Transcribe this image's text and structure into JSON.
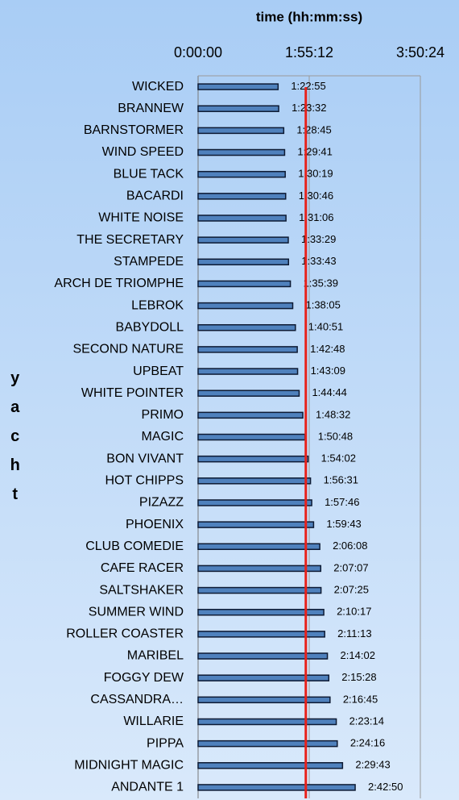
{
  "chart_data": {
    "type": "hbar",
    "x_label": "time (hh:mm:ss)",
    "y_label": "yacht",
    "categories": [
      "WICKED",
      "BRANNEW",
      "BARNSTORMER",
      "WIND SPEED",
      "BLUE TACK",
      "BACARDI",
      "WHITE NOISE",
      "THE SECRETARY",
      "STAMPEDE",
      "ARCH DE TRIOMPHE",
      "LEBROK",
      "BABYDOLL",
      "SECOND NATURE",
      "UPBEAT",
      "WHITE POINTER",
      "PRIMO",
      "MAGIC",
      "BON VIVANT",
      "HOT CHIPPS",
      "PIZAZZ",
      "PHOENIX",
      "CLUB COMEDIE",
      "CAFE RACER",
      "SALTSHAKER",
      "SUMMER WIND",
      "ROLLER COASTER",
      "MARIBEL",
      "FOGGY DEW",
      "CASSANDRA…",
      "WILLARIE",
      "PIPPA",
      "MIDNIGHT MAGIC",
      "ANDANTE 1"
    ],
    "values": [
      4975,
      5012,
      5325,
      5381,
      5419,
      5446,
      5466,
      5609,
      5623,
      5739,
      5885,
      6051,
      6168,
      6189,
      6284,
      6512,
      6648,
      6842,
      6991,
      7066,
      7183,
      7568,
      7627,
      7645,
      7817,
      7873,
      8042,
      8128,
      8205,
      8594,
      8656,
      8983,
      9770
    ],
    "value_labels": [
      "1:22:55",
      "1:23:32",
      "1:28:45",
      "1:29:41",
      "1:30:19",
      "1:30:46",
      "1:31:06",
      "1:33:29",
      "1:33:43",
      "1:35:39",
      "1:38:05",
      "1:40:51",
      "1:42:48",
      "1:43:09",
      "1:44:44",
      "1:48:32",
      "1:50:48",
      "1:54:02",
      "1:56:31",
      "1:57:46",
      "1:59:43",
      "2:06:08",
      "2:07:07",
      "2:07:25",
      "2:10:17",
      "2:11:13",
      "2:14:02",
      "2:15:28",
      "2:16:45",
      "2:23:14",
      "2:24:16",
      "2:29:43",
      "2:42:50"
    ],
    "color": "#4f81bd",
    "xlim": [
      0,
      13824
    ],
    "xticks": [
      {
        "value": 0,
        "label": "0:00:00"
      },
      {
        "value": 6912,
        "label": "1:55:12"
      },
      {
        "value": 13824,
        "label": "3:50:24"
      }
    ],
    "grid": true,
    "reference_line": {
      "value": 6700,
      "color": "#e8211a"
    }
  }
}
